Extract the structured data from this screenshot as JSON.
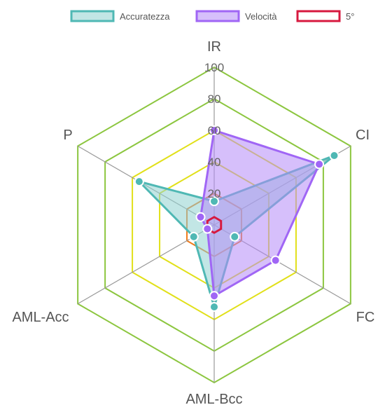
{
  "chart_data": {
    "type": "radar",
    "axes": [
      "IR",
      "CI",
      "FC",
      "AML-Bcc",
      "AML-Acc",
      "P"
    ],
    "r_range": [
      0,
      100
    ],
    "ticks": [
      "20",
      "40",
      "60",
      "80",
      "100"
    ],
    "tick_values": [
      20,
      40,
      60,
      80,
      100
    ],
    "grid": true,
    "legend_position": "top",
    "series": [
      {
        "name": "Accuratezza",
        "values": [
          15,
          88,
          15,
          52,
          15,
          55
        ],
        "stroke": "#4fb8b4",
        "fill": "#8fd2cf",
        "fill_opacity": 0.55,
        "point_fill": "#4fb8b4"
      },
      {
        "name": "Velocità",
        "values": [
          60,
          77,
          45,
          45,
          5,
          10
        ],
        "stroke": "#a066f5",
        "fill": "#b48af7",
        "fill_opacity": 0.55,
        "point_fill": "#a066f5"
      },
      {
        "name": "5°",
        "values": [
          5,
          5,
          5,
          5,
          5,
          5
        ],
        "stroke": "#d7193f",
        "fill": "#ffffff",
        "fill_opacity": 0,
        "point_fill": null
      }
    ],
    "grid_colors": {
      "20": "#f07b1c",
      "40": "#e1e019",
      "60": "#e1e019",
      "80": "#8cc63f",
      "100": "#8cc63f"
    },
    "spoke_color": "#999999"
  }
}
